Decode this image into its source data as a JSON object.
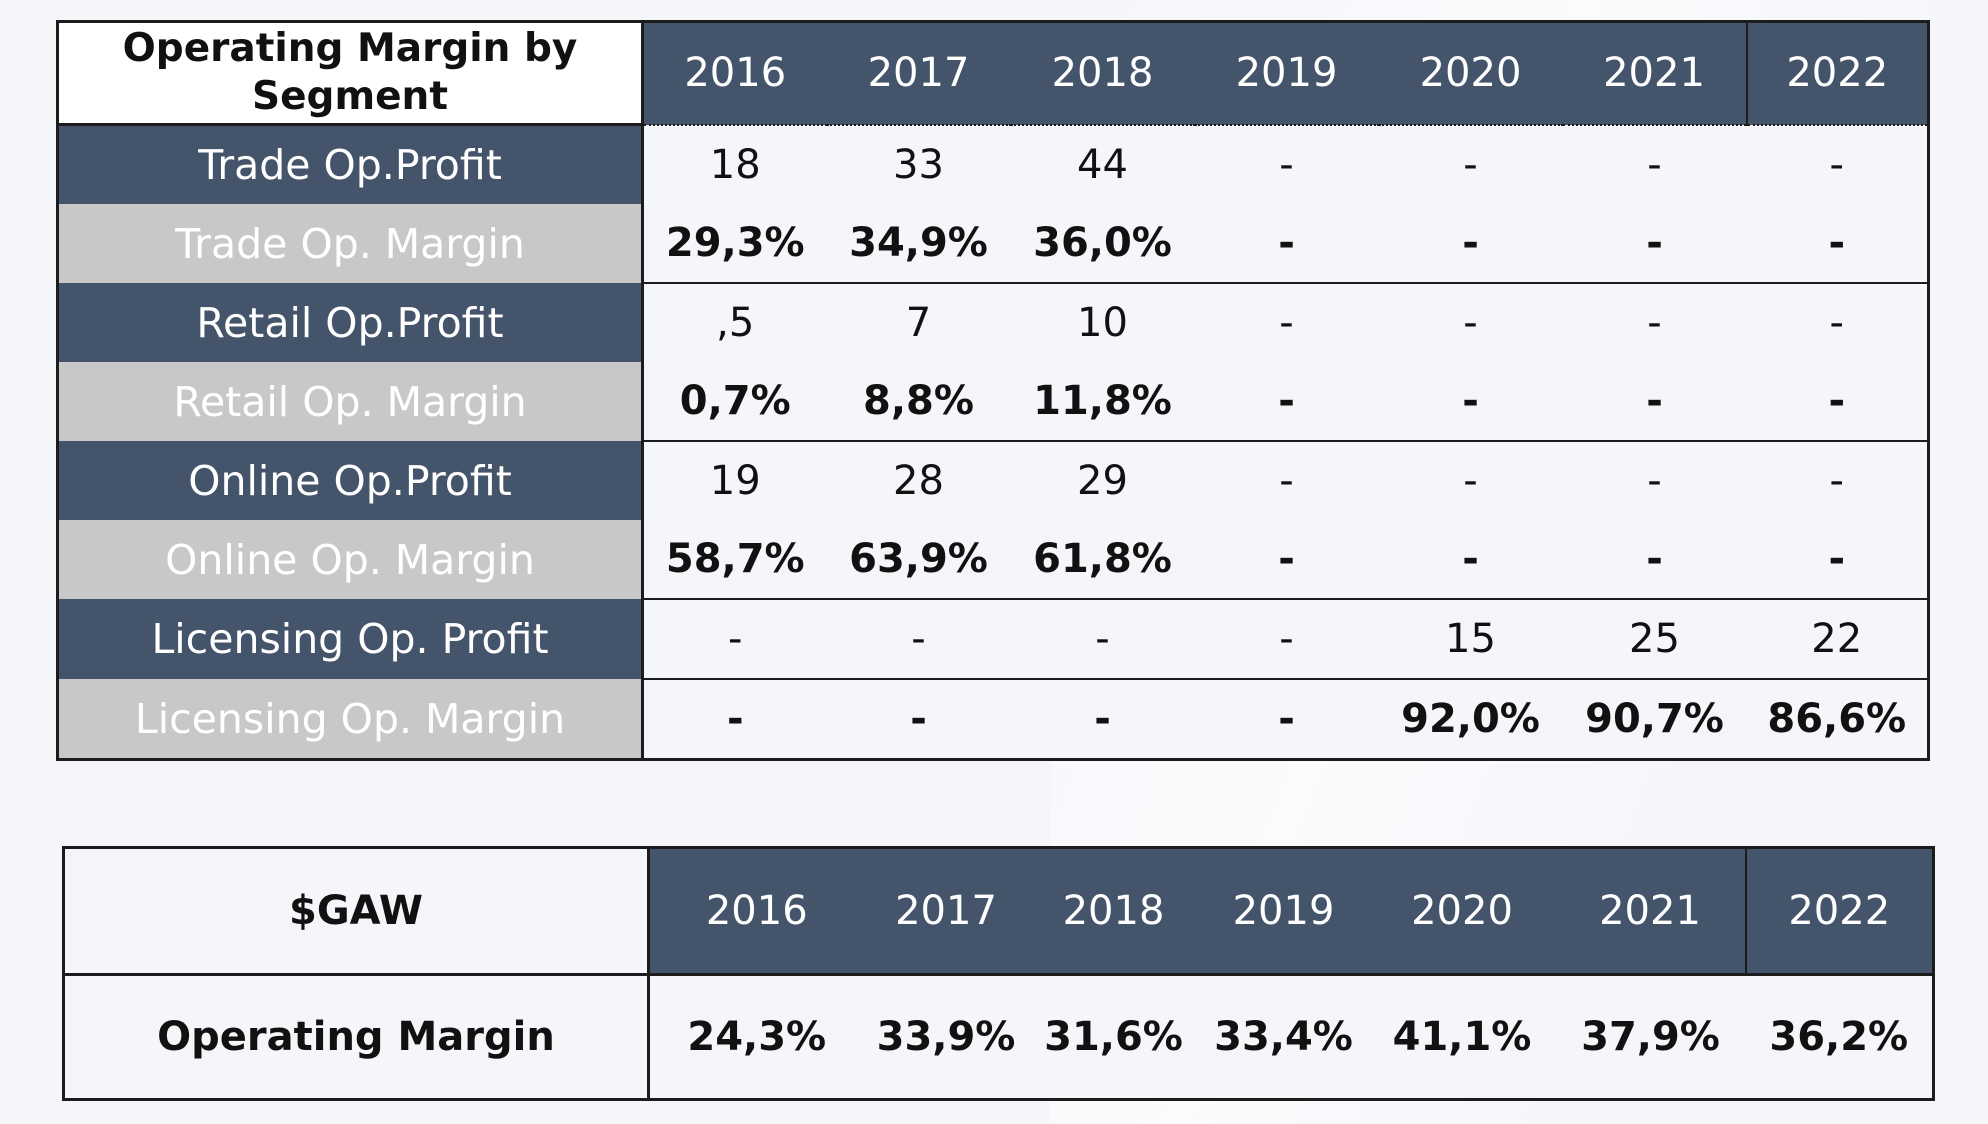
{
  "segment_table": {
    "title": "Operating Margin by Segment",
    "years": [
      "2016",
      "2017",
      "2018",
      "2019",
      "2020",
      "2021",
      "2022"
    ],
    "rows": [
      {
        "label": "Trade Op.Profit",
        "kind": "profit",
        "values": [
          "18",
          "33",
          "44",
          "-",
          "-",
          "-",
          "-"
        ]
      },
      {
        "label": "Trade Op. Margin",
        "kind": "margin",
        "values": [
          "29,3%",
          "34,9%",
          "36,0%",
          "-",
          "-",
          "-",
          "-"
        ]
      },
      {
        "label": "Retail Op.Profit",
        "kind": "profit",
        "values": [
          ",5",
          "7",
          "10",
          "-",
          "-",
          "-",
          "-"
        ]
      },
      {
        "label": "Retail Op. Margin",
        "kind": "margin",
        "values": [
          "0,7%",
          "8,8%",
          "11,8%",
          "-",
          "-",
          "-",
          "-"
        ]
      },
      {
        "label": "Online Op.Profit",
        "kind": "profit",
        "values": [
          "19",
          "28",
          "29",
          "-",
          "-",
          "-",
          "-"
        ]
      },
      {
        "label": "Online Op. Margin",
        "kind": "margin",
        "values": [
          "58,7%",
          "63,9%",
          "61,8%",
          "-",
          "-",
          "-",
          "-"
        ]
      },
      {
        "label": "Licensing Op. Profit",
        "kind": "profit",
        "values": [
          "-",
          "-",
          "-",
          "-",
          "15",
          "25",
          "22"
        ]
      },
      {
        "label": "Licensing Op. Margin",
        "kind": "margin",
        "values": [
          "-",
          "-",
          "-",
          "-",
          "92,0%",
          "90,7%",
          "86,6%"
        ]
      }
    ]
  },
  "ticker_table": {
    "ticker": "$GAW",
    "years": [
      "2016",
      "2017",
      "2018",
      "2019",
      "2020",
      "2021",
      "2022"
    ],
    "row_label": "Operating Margin",
    "values": [
      "24,3%",
      "33,9%",
      "31,6%",
      "33,4%",
      "41,1%",
      "37,9%",
      "36,2%"
    ]
  },
  "colors": {
    "header_dark": "#44546a",
    "label_light": "#c8c8c8",
    "cell_background": "#f4f6fa",
    "border": "#1c1c1c"
  }
}
